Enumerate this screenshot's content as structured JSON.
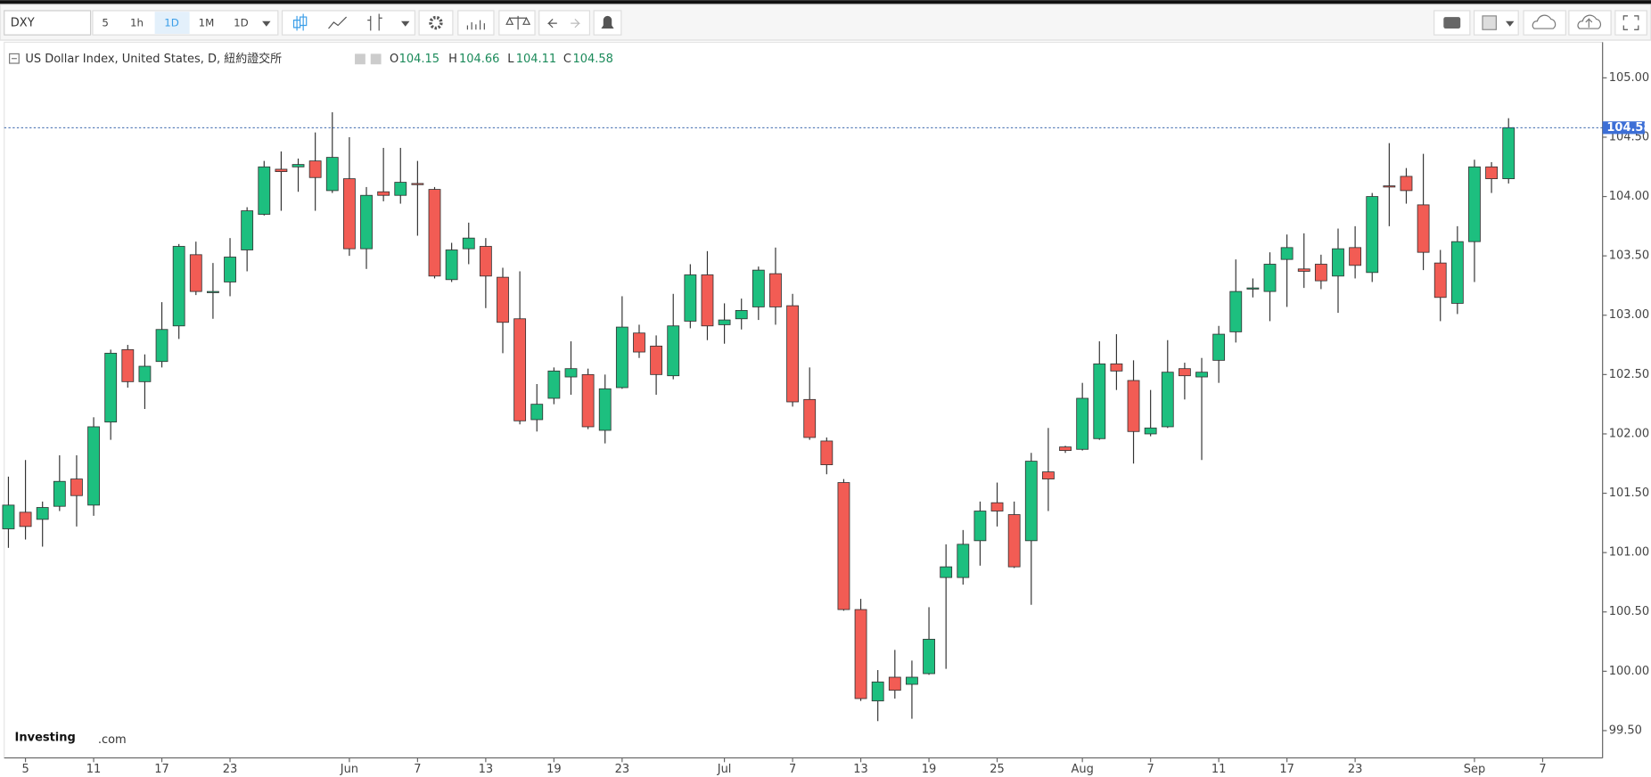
{
  "toolbar": {
    "symbol": "DXY",
    "intervals": [
      "5",
      "1h",
      "1D",
      "1M",
      "1D"
    ]
  },
  "legend": {
    "title": "US Dollar Index, United States, D, 紐約證交所",
    "labels": [
      "O",
      "H",
      "L",
      "C"
    ]
  },
  "logo": {
    "name": "Investing",
    "suffix": ".com"
  },
  "chart_data": {
    "type": "candlestick",
    "up_color": "#1dbf7f",
    "down_color": "#f25c54",
    "grid": false,
    "categories": [
      null,
      "5",
      null,
      null,
      null,
      "11",
      null,
      null,
      null,
      "17",
      null,
      null,
      null,
      "23",
      null,
      null,
      null,
      null,
      null,
      null,
      "Jun",
      null,
      null,
      null,
      "7",
      null,
      null,
      null,
      "13",
      null,
      null,
      null,
      "19",
      null,
      null,
      null,
      "23",
      null,
      null,
      null,
      null,
      null,
      "Jul",
      null,
      null,
      null,
      "7",
      null,
      null,
      null,
      "13",
      null,
      null,
      null,
      "19",
      null,
      null,
      null,
      "25",
      null,
      null,
      null,
      null,
      "Aug",
      null,
      null,
      null,
      "7",
      null,
      null,
      null,
      "11",
      null,
      null,
      null,
      "17",
      null,
      null,
      null,
      "23",
      null,
      null,
      null,
      null,
      null,
      null,
      "Sep",
      null,
      null,
      null,
      "7"
    ],
    "open": [
      101.2,
      101.34,
      101.28,
      101.39,
      101.62,
      101.4,
      102.1,
      102.71,
      102.44,
      102.61,
      102.91,
      103.51,
      103.19,
      103.28,
      103.55,
      103.85,
      104.23,
      104.25,
      104.3,
      104.05,
      104.15,
      103.56,
      104.04,
      104.01,
      104.11,
      104.06,
      103.3,
      103.56,
      103.58,
      103.32,
      102.97,
      102.12,
      102.3,
      102.48,
      102.5,
      102.03,
      102.39,
      102.85,
      102.74,
      102.49,
      102.95,
      103.34,
      102.92,
      102.97,
      103.07,
      103.35,
      103.08,
      102.29,
      101.94,
      101.59,
      100.52,
      99.75,
      99.95,
      99.89,
      99.98,
      100.79,
      100.79,
      101.1,
      101.42,
      101.32,
      101.1,
      101.68,
      101.89,
      101.87,
      101.96,
      102.59,
      102.45,
      102.0,
      102.06,
      102.55,
      102.48,
      102.62,
      102.86,
      103.22,
      103.2,
      103.47,
      103.39,
      103.43,
      103.33,
      103.57,
      103.36,
      104.09,
      104.17,
      103.93,
      103.44,
      103.1,
      103.62,
      104.25,
      104.15,
      null,
      null
    ],
    "high": [
      101.64,
      101.78,
      101.43,
      101.82,
      101.82,
      102.14,
      102.71,
      102.75,
      102.67,
      103.11,
      103.6,
      103.62,
      103.44,
      103.65,
      103.91,
      104.3,
      104.38,
      104.32,
      104.54,
      104.71,
      104.5,
      104.08,
      104.41,
      104.41,
      104.3,
      104.08,
      103.61,
      103.78,
      103.65,
      103.4,
      103.37,
      102.42,
      102.56,
      102.78,
      102.55,
      102.5,
      103.16,
      102.92,
      102.83,
      103.18,
      103.43,
      103.54,
      103.1,
      103.14,
      103.41,
      103.57,
      103.18,
      102.56,
      101.97,
      101.62,
      100.61,
      100.01,
      100.18,
      100.09,
      100.54,
      101.07,
      101.19,
      101.43,
      101.59,
      101.43,
      101.84,
      102.05,
      101.9,
      102.43,
      102.78,
      102.84,
      102.62,
      102.37,
      102.79,
      102.6,
      102.64,
      102.91,
      103.47,
      103.31,
      103.53,
      103.68,
      103.69,
      103.51,
      103.73,
      103.75,
      104.03,
      104.45,
      104.24,
      104.36,
      103.55,
      103.75,
      104.31,
      104.29,
      104.66,
      null,
      null
    ],
    "low": [
      101.04,
      101.11,
      101.05,
      101.35,
      101.22,
      101.31,
      101.95,
      102.39,
      102.21,
      102.56,
      102.8,
      103.17,
      102.97,
      103.16,
      103.37,
      103.84,
      103.88,
      104.04,
      103.88,
      104.03,
      103.5,
      103.39,
      103.96,
      103.94,
      103.67,
      103.31,
      103.28,
      103.43,
      103.06,
      102.68,
      102.08,
      102.02,
      102.25,
      102.33,
      102.04,
      101.92,
      102.38,
      102.64,
      102.33,
      102.46,
      102.89,
      102.79,
      102.76,
      102.88,
      102.96,
      102.92,
      102.23,
      101.95,
      101.66,
      100.51,
      99.75,
      99.58,
      99.77,
      99.6,
      99.97,
      100.02,
      100.73,
      100.89,
      101.22,
      100.87,
      100.56,
      101.35,
      101.84,
      101.86,
      101.95,
      102.37,
      101.75,
      101.98,
      102.05,
      102.29,
      101.78,
      102.43,
      102.77,
      103.15,
      102.95,
      103.07,
      103.23,
      103.22,
      103.02,
      103.31,
      103.28,
      103.75,
      103.94,
      103.38,
      102.95,
      103.01,
      103.28,
      104.03,
      104.11,
      null,
      null
    ],
    "close": [
      101.4,
      101.22,
      101.38,
      101.6,
      101.48,
      102.06,
      102.68,
      102.44,
      102.57,
      102.88,
      103.58,
      103.2,
      103.2,
      103.49,
      103.88,
      104.25,
      104.21,
      104.27,
      104.16,
      104.33,
      103.56,
      104.01,
      104.01,
      104.12,
      104.1,
      103.33,
      103.55,
      103.65,
      103.33,
      102.94,
      102.11,
      102.25,
      102.53,
      102.55,
      102.06,
      102.38,
      102.9,
      102.69,
      102.5,
      102.91,
      103.34,
      102.91,
      102.96,
      103.04,
      103.38,
      103.07,
      102.27,
      101.97,
      101.74,
      100.52,
      99.77,
      99.91,
      99.84,
      99.95,
      100.27,
      100.88,
      101.07,
      101.35,
      101.35,
      100.88,
      101.77,
      101.62,
      101.86,
      102.3,
      102.59,
      102.53,
      102.02,
      102.05,
      102.52,
      102.49,
      102.52,
      102.84,
      103.2,
      103.23,
      103.43,
      103.57,
      103.37,
      103.29,
      103.56,
      103.42,
      104.0,
      104.08,
      104.05,
      103.53,
      103.15,
      103.62,
      104.25,
      104.15,
      104.58,
      null,
      null
    ],
    "ylim": [
      99.27,
      105.3
    ],
    "yticks": [
      {
        "value": 99.5,
        "label": "99.50"
      },
      {
        "value": 100,
        "label": "100.00"
      },
      {
        "value": 100.5,
        "label": "100.50"
      },
      {
        "value": 101,
        "label": "101.00"
      },
      {
        "value": 101.5,
        "label": "101.50"
      },
      {
        "value": 102,
        "label": "102.00"
      },
      {
        "value": 102.5,
        "label": "102.50"
      },
      {
        "value": 103,
        "label": "103.00"
      },
      {
        "value": 103.5,
        "label": "103.50"
      },
      {
        "value": 104,
        "label": "104.00"
      },
      {
        "value": 104.5,
        "label": "104.50"
      },
      {
        "value": 105,
        "label": "105.00"
      }
    ]
  }
}
